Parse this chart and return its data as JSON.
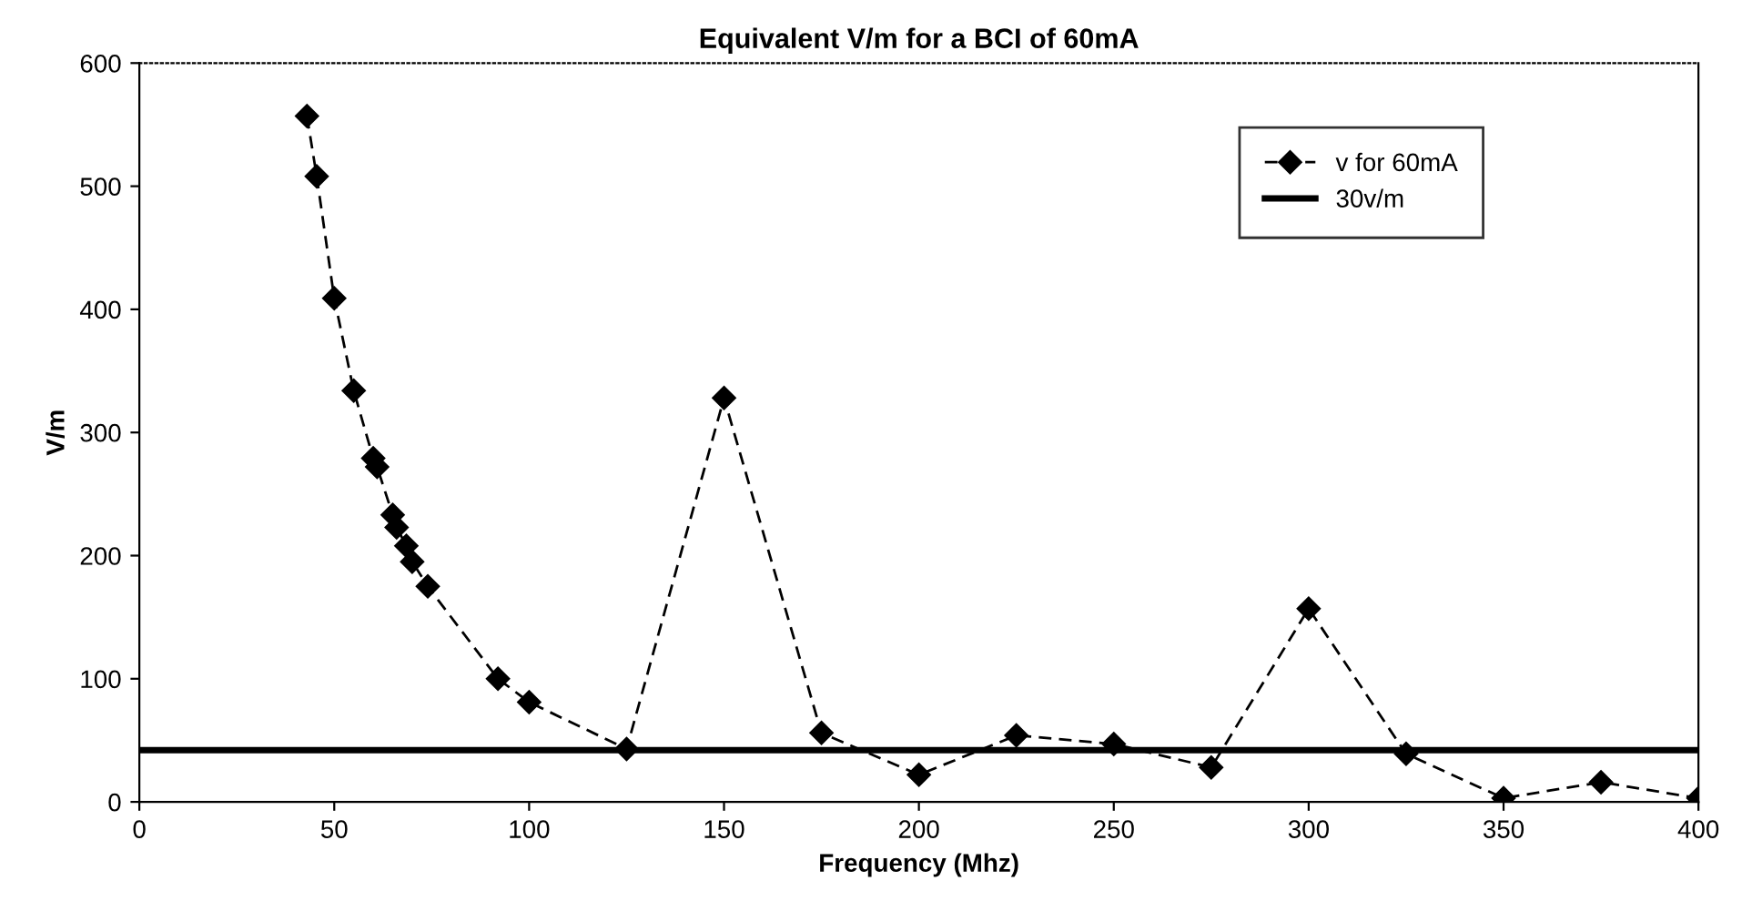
{
  "chart_data": {
    "type": "line",
    "title": "Equivalent V/m for a BCI of 60mA",
    "xlabel": "Frequency (Mhz)",
    "ylabel": "V/m",
    "xlim": [
      0,
      400
    ],
    "xticks": [
      0,
      50,
      100,
      150,
      200,
      250,
      300,
      350,
      400
    ],
    "ylim": [
      0,
      600
    ],
    "yticks": [
      0,
      100,
      200,
      300,
      400,
      500,
      600
    ],
    "grid": false,
    "legend": "top right",
    "series": [
      {
        "name": "v for 60mA",
        "color": "#000000",
        "marker": "diamond",
        "line_style": "dashed",
        "x": [
          43,
          45.5,
          50,
          55,
          60,
          61,
          65,
          66,
          68.5,
          70,
          74,
          92,
          100,
          125,
          150,
          175,
          200,
          225,
          250,
          275,
          300,
          325,
          350,
          375,
          400
        ],
        "values": [
          557,
          508,
          409,
          334,
          279,
          272,
          233,
          223,
          208,
          195,
          175,
          100,
          81,
          43,
          328,
          56,
          22,
          54,
          47,
          28,
          157,
          39,
          3,
          16,
          3
        ]
      },
      {
        "name": "30v/m",
        "color": "#000000",
        "marker": "none",
        "line_style": "solid",
        "x": [
          0,
          400
        ],
        "values": [
          42,
          42
        ]
      }
    ]
  }
}
